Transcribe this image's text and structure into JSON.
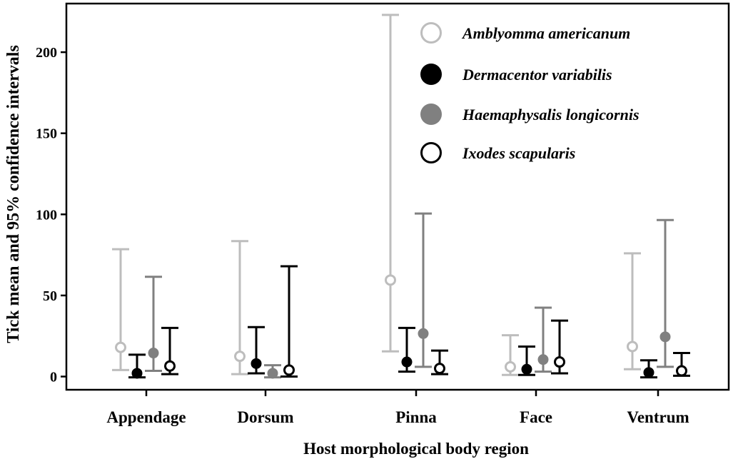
{
  "chart_data": {
    "type": "errorbar",
    "xlabel": "Host morphological body region",
    "ylabel": "Tick mean and 95% confidence intervals",
    "categories": [
      "Appendage",
      "Dorsum",
      "Pinna",
      "Face",
      "Ventrum"
    ],
    "ylim": [
      -8,
      225
    ],
    "yticks": [
      0,
      50,
      100,
      150,
      200
    ],
    "grid": false,
    "legend_position": "top-right",
    "series": [
      {
        "name": "Amblyomma americanum",
        "color": "#bdbdbd",
        "marker": "open-circle",
        "mean": [
          18,
          12.5,
          59.5,
          6,
          18.5
        ],
        "lower": [
          4,
          1.5,
          15.5,
          1,
          4.5
        ],
        "upper": [
          78.5,
          83.5,
          223,
          25.5,
          76
        ]
      },
      {
        "name": "Dermacentor variabilis",
        "color": "#000000",
        "marker": "filled-circle",
        "mean": [
          2,
          8,
          9,
          4.5,
          2.5
        ],
        "lower": [
          -0.5,
          2,
          3,
          1,
          -0.5
        ],
        "upper": [
          13.5,
          30.5,
          30,
          18.5,
          10
        ]
      },
      {
        "name": "Haemaphysalis longicornis",
        "color": "#808080",
        "marker": "filled-circle",
        "mean": [
          14.5,
          2,
          26.5,
          10.5,
          24.5
        ],
        "lower": [
          3.5,
          -0.5,
          6,
          3,
          6
        ],
        "upper": [
          61.5,
          7,
          100.5,
          42.5,
          96.5
        ]
      },
      {
        "name": "Ixodes scapularis",
        "color": "#000000",
        "marker": "open-circle",
        "mean": [
          6.5,
          4,
          5,
          9,
          3.5
        ],
        "lower": [
          1.5,
          0,
          1.5,
          2,
          0.5
        ],
        "upper": [
          30,
          68,
          16,
          34.5,
          14.5
        ]
      }
    ]
  }
}
